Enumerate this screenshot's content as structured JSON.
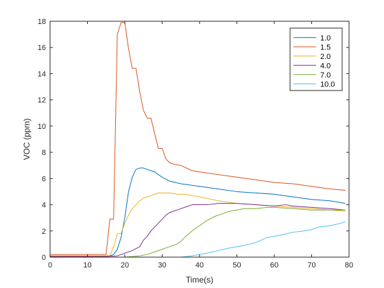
{
  "chart_data": {
    "type": "line",
    "title": "",
    "xlabel": "Time(s)",
    "ylabel": "VOC (ppm)",
    "xlim": [
      0,
      80
    ],
    "ylim": [
      0,
      18
    ],
    "xticks": [
      0,
      10,
      20,
      30,
      40,
      50,
      60,
      70,
      80
    ],
    "yticks": [
      0,
      2,
      4,
      6,
      8,
      10,
      12,
      14,
      16,
      18
    ],
    "grid": false,
    "legend_position": "top-right",
    "colors": [
      "#0072BD",
      "#D95319",
      "#EDB120",
      "#7E2F8E",
      "#77AC30",
      "#4DBEEE"
    ],
    "series": [
      {
        "name": "1.0",
        "x": [
          0,
          5,
          10,
          15,
          16,
          17,
          18,
          19,
          20,
          21,
          22,
          23,
          24,
          25,
          26,
          27,
          28,
          29,
          30,
          32,
          35,
          40,
          45,
          50,
          55,
          60,
          65,
          70,
          75,
          79
        ],
        "y": [
          0.1,
          0.1,
          0.1,
          0.1,
          0.1,
          0.2,
          0.6,
          1.5,
          3.0,
          5.0,
          6.1,
          6.7,
          6.8,
          6.8,
          6.7,
          6.6,
          6.5,
          6.3,
          6.1,
          5.8,
          5.6,
          5.4,
          5.2,
          5.0,
          4.9,
          4.8,
          4.6,
          4.4,
          4.3,
          4.1
        ]
      },
      {
        "name": "1.5",
        "x": [
          0,
          5,
          10,
          15,
          16,
          17,
          18,
          19,
          20,
          21,
          22,
          23,
          24,
          25,
          26,
          27,
          28,
          29,
          30,
          31,
          32,
          33,
          35,
          38,
          40,
          45,
          50,
          55,
          60,
          65,
          70,
          75,
          79
        ],
        "y": [
          0.2,
          0.2,
          0.2,
          0.2,
          2.9,
          2.9,
          17.0,
          17.9,
          17.9,
          15.9,
          14.4,
          14.4,
          12.6,
          11.2,
          10.6,
          10.6,
          9.4,
          8.3,
          8.3,
          7.5,
          7.2,
          7.1,
          7.0,
          6.6,
          6.5,
          6.3,
          6.1,
          5.9,
          5.7,
          5.6,
          5.4,
          5.2,
          5.1
        ]
      },
      {
        "name": "2.0",
        "x": [
          0,
          5,
          10,
          15,
          16,
          17,
          18,
          19,
          20,
          21,
          22,
          23,
          24,
          25,
          26,
          27,
          28,
          29,
          30,
          31,
          32,
          34,
          36,
          38,
          40,
          45,
          50,
          55,
          60,
          65,
          70,
          75,
          79
        ],
        "y": [
          0.1,
          0.1,
          0.1,
          0.1,
          0.1,
          0.8,
          1.8,
          1.8,
          2.6,
          3.2,
          3.7,
          4.0,
          4.3,
          4.5,
          4.6,
          4.7,
          4.8,
          4.9,
          4.9,
          4.9,
          4.9,
          4.8,
          4.8,
          4.7,
          4.6,
          4.3,
          4.1,
          4.0,
          3.9,
          3.8,
          3.7,
          3.6,
          3.5
        ]
      },
      {
        "name": "4.0",
        "x": [
          0,
          5,
          10,
          15,
          18,
          20,
          22,
          24,
          25,
          26,
          27,
          28,
          29,
          30,
          31,
          32,
          33,
          34,
          35,
          36,
          37,
          38,
          40,
          42,
          45,
          50,
          55,
          60,
          63,
          65,
          70,
          75,
          79
        ],
        "y": [
          0.05,
          0.05,
          0.05,
          0.05,
          0.1,
          0.3,
          0.5,
          0.8,
          1.3,
          1.6,
          2.0,
          2.3,
          2.6,
          2.9,
          3.2,
          3.4,
          3.5,
          3.6,
          3.7,
          3.8,
          3.9,
          4.0,
          4.0,
          4.0,
          4.1,
          4.1,
          4.0,
          3.9,
          4.0,
          3.9,
          3.8,
          3.7,
          3.6
        ]
      },
      {
        "name": "7.0",
        "x": [
          0,
          5,
          10,
          15,
          20,
          22,
          24,
          26,
          28,
          30,
          32,
          34,
          35,
          36,
          38,
          40,
          42,
          44,
          46,
          48,
          50,
          52,
          55,
          58,
          60,
          65,
          70,
          75,
          79
        ],
        "y": [
          0.0,
          0.0,
          0.0,
          0.0,
          0.0,
          0.05,
          0.1,
          0.2,
          0.4,
          0.6,
          0.8,
          1.0,
          1.2,
          1.5,
          2.0,
          2.4,
          2.8,
          3.1,
          3.3,
          3.5,
          3.6,
          3.7,
          3.7,
          3.8,
          3.8,
          3.7,
          3.6,
          3.6,
          3.6
        ]
      },
      {
        "name": "10.0",
        "x": [
          0,
          10,
          20,
          30,
          35,
          38,
          40,
          42,
          45,
          48,
          50,
          52,
          55,
          58,
          60,
          62,
          65,
          68,
          70,
          72,
          75,
          78,
          79
        ],
        "y": [
          0.0,
          0.0,
          0.0,
          0.0,
          0.0,
          0.1,
          0.2,
          0.3,
          0.5,
          0.7,
          0.8,
          0.9,
          1.1,
          1.5,
          1.6,
          1.7,
          1.9,
          2.0,
          2.1,
          2.3,
          2.4,
          2.6,
          2.7
        ]
      }
    ]
  }
}
